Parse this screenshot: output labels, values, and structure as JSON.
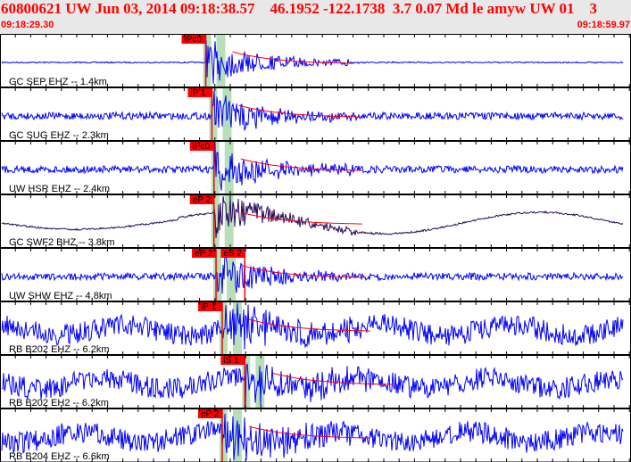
{
  "header": {
    "title": "60800621 UW Jun 03, 2014 09:18:38.57    46.1952 -122.1738  3.7 0.07 Md le amyw UW 01    3",
    "start_time": "09:18:29.30",
    "end_time": "09:18:59.97"
  },
  "colors": {
    "trace": "#0000ff",
    "long_period_trace": "#2a0a5a",
    "pick": "#ff0000",
    "window": "#b8e0b8"
  },
  "chart_data": {
    "type": "line",
    "x_range_seconds": [
      29.3,
      59.97
    ],
    "traces": [
      {
        "label": "GC SEP EHZ -- 1.4km",
        "picks": [
          {
            "label": "iPc0",
            "time": 39.3
          }
        ],
        "noise": "low"
      },
      {
        "label": "GC SUG EHZ -- 2.3km",
        "picks": [
          {
            "label": "iP 1",
            "time": 39.6
          }
        ],
        "noise": "medium"
      },
      {
        "label": "UW HSR EHZ -- 2.4km",
        "picks": [
          {
            "label": "iPc0",
            "time": 39.7
          }
        ],
        "noise": "medium"
      },
      {
        "label": "GC SWF2 BHZ -- 3.8km",
        "picks": [
          {
            "label": "eP 2",
            "time": 39.7
          }
        ],
        "noise": "long-period"
      },
      {
        "label": "UW SHW EHZ -- 4.8km",
        "picks": [
          {
            "label": "eP 2",
            "time": 39.8
          },
          {
            "label": "eS 2",
            "time": 41.2
          }
        ],
        "noise": "medium"
      },
      {
        "label": "RB B202 EHZ -- 6.2km",
        "picks": [
          {
            "label": "iP 1",
            "time": 40.1
          }
        ],
        "noise": "high"
      },
      {
        "label": "RB B202 EH2 -- 6.2km",
        "picks": [
          {
            "label": "iS 1",
            "time": 41.2
          }
        ],
        "noise": "high"
      },
      {
        "label": "RB B204 EHZ -- 6.6km",
        "picks": [
          {
            "label": "eP 2",
            "time": 40.1
          }
        ],
        "noise": "high"
      }
    ]
  }
}
